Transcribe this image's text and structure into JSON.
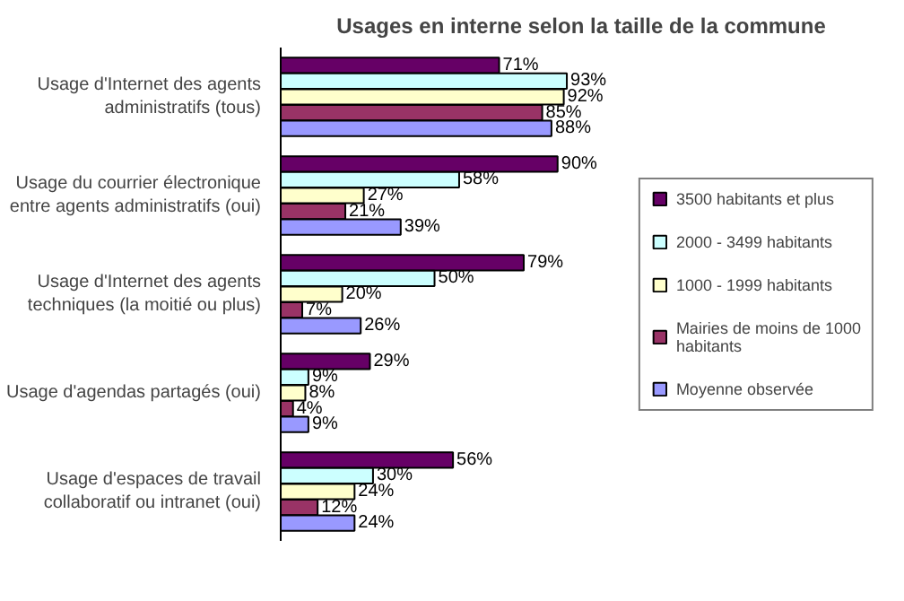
{
  "chart_data": {
    "type": "bar",
    "orientation": "horizontal",
    "title": "Usages en interne selon la taille de la commune",
    "categories": [
      "Usage d'Internet des agents administratifs (tous)",
      "Usage du courrier électronique entre agents administratifs (oui)",
      "Usage d'Internet des agents techniques (la moitié ou plus)",
      "Usage d'agendas partagés (oui)",
      "Usage d'espaces de travail collaboratif ou intranet (oui)"
    ],
    "series": [
      {
        "name": "3500 habitants et plus",
        "color": "#660066",
        "values": [
          71,
          90,
          79,
          29,
          56
        ],
        "value_labels": [
          "71%",
          "90%",
          "79%",
          "29%",
          "56%"
        ]
      },
      {
        "name": "2000 - 3499 habitants",
        "color": "#ccffff",
        "values": [
          93,
          58,
          50,
          9,
          30
        ],
        "value_labels": [
          "93%",
          "58%",
          "50%",
          "9%",
          "30%"
        ]
      },
      {
        "name": "1000 - 1999 habitants",
        "color": "#ffffcc",
        "values": [
          92,
          27,
          20,
          8,
          24
        ],
        "value_labels": [
          "92%",
          "27%",
          "20%",
          "8%",
          "24%"
        ]
      },
      {
        "name": "Mairies de moins de 1000 habitants",
        "color": "#993366",
        "values": [
          85,
          21,
          7,
          4,
          12
        ],
        "value_labels": [
          "85%",
          "21%",
          "7%",
          "4%",
          "12%"
        ]
      },
      {
        "name": "Moyenne observée",
        "color": "#9999ff",
        "values": [
          88,
          39,
          26,
          9,
          24
        ],
        "value_labels": [
          "88%",
          "39%",
          "26%",
          "9%",
          "24%"
        ]
      }
    ],
    "legend": "right"
  }
}
